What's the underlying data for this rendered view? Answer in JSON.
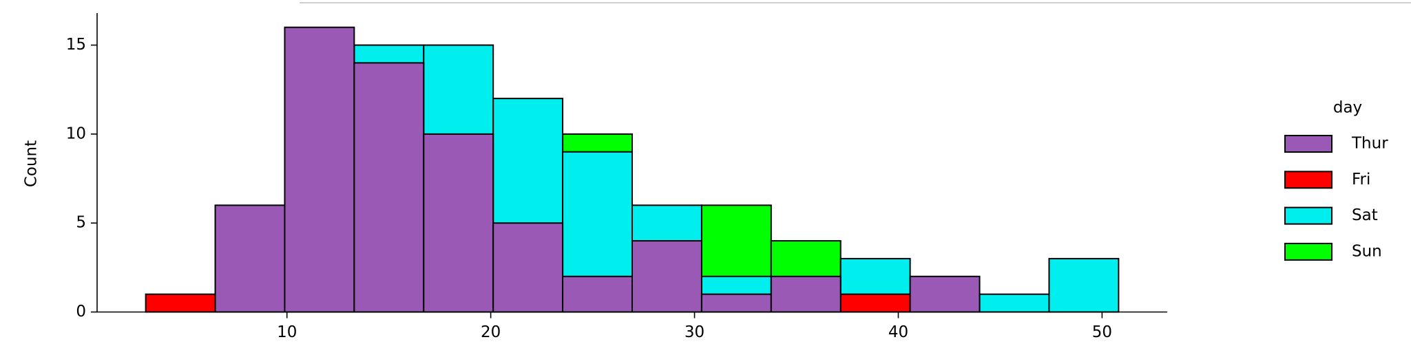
{
  "chart_data": {
    "type": "histogram",
    "y_label": "Count",
    "legend_title": "day",
    "bins": [
      3.07,
      6.48,
      9.89,
      13.3,
      16.71,
      20.12,
      23.53,
      26.94,
      30.35,
      33.76,
      37.17,
      40.58,
      43.99,
      47.4,
      50.81
    ],
    "series": [
      {
        "name": "Thur",
        "color": "#9b59b6",
        "values": [
          0,
          6,
          16,
          14,
          10,
          5,
          2,
          4,
          1,
          2,
          0,
          2,
          0,
          0
        ]
      },
      {
        "name": "Fri",
        "color": "#ff0000",
        "values": [
          1,
          0,
          0,
          0,
          0,
          0,
          0,
          0,
          0,
          0,
          1,
          0,
          0,
          0
        ]
      },
      {
        "name": "Sat",
        "color": "#00eeee",
        "values": [
          0,
          0,
          0,
          15,
          15,
          12,
          9,
          6,
          2,
          0,
          3,
          0,
          1,
          3
        ]
      },
      {
        "name": "Sun",
        "color": "#00ff00",
        "values": [
          0,
          0,
          0,
          0,
          0,
          0,
          10,
          0,
          6,
          4,
          0,
          0,
          0,
          0
        ]
      }
    ],
    "draw_order": [
      "Sun",
      "Sat",
      "Fri",
      "Thur"
    ],
    "xlim": [
      0.683,
      53.197
    ],
    "ylim": [
      0,
      16.8
    ],
    "xticks": [
      10,
      20,
      30,
      40,
      50
    ],
    "yticks": [
      0,
      5,
      10,
      15
    ]
  }
}
